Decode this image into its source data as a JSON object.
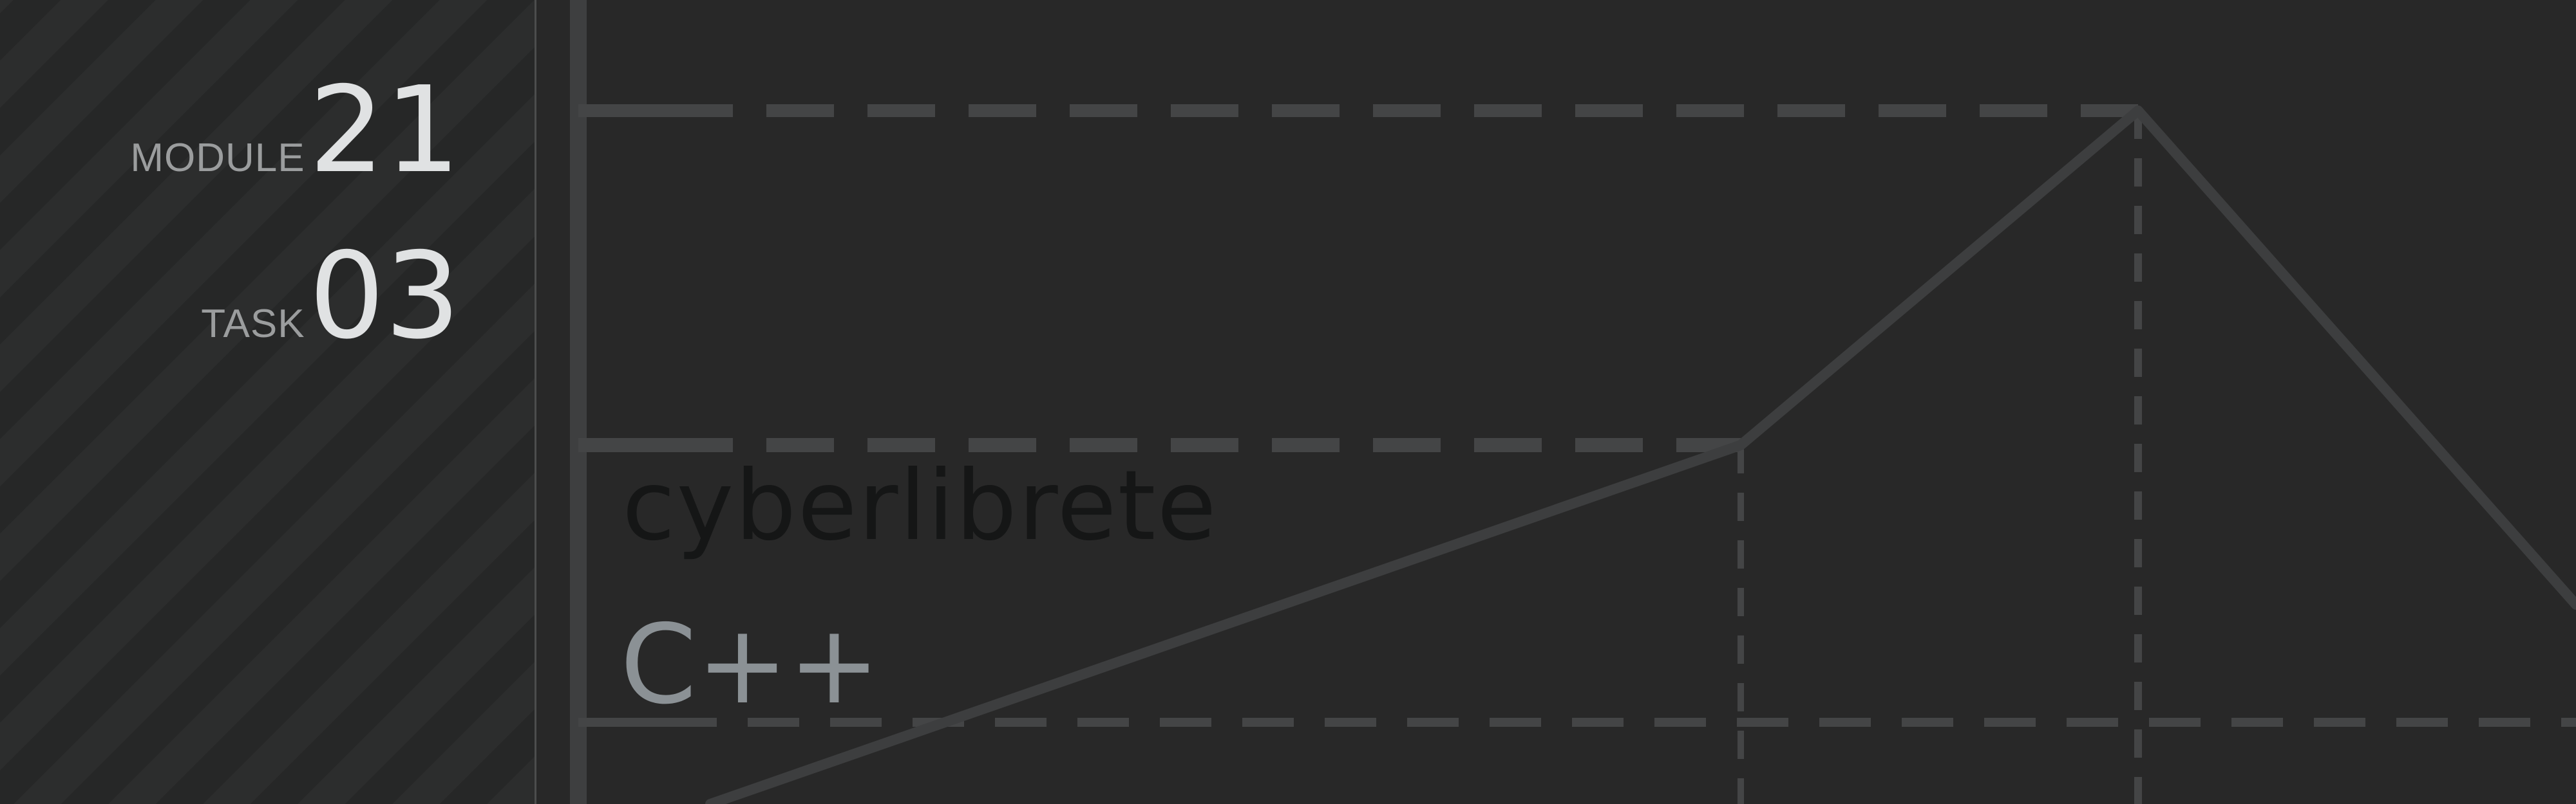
{
  "sidebar": {
    "module_label": "MODULE",
    "module_value": "21",
    "task_label": "TASK",
    "task_value": "03"
  },
  "main": {
    "author": "cyberlibrete",
    "language": "C++"
  },
  "colors": {
    "background": "#282828",
    "sidebar_stripe_light": "#2c2d2d",
    "sidebar_stripe_dark": "#262727",
    "line": "#444546",
    "label_muted": "#9b9d9e",
    "value_text": "#e0e2e3",
    "author_text": "#151616",
    "language_text": "#8b9195"
  }
}
